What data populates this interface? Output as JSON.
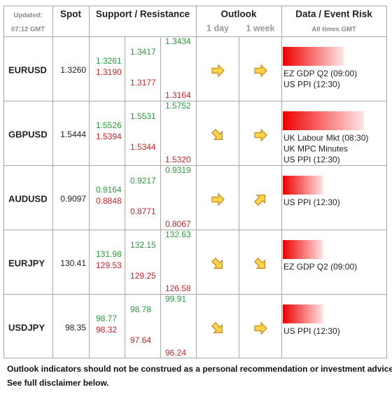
{
  "header": {
    "updated_label": "Updated:",
    "updated_time": "07:12 GMT",
    "spot": "Spot",
    "support_resistance": "Support / Resistance",
    "outlook": "Outlook",
    "outlook_1day": "1 day",
    "outlook_1week": "1 week",
    "event_risk": "Data / Event Risk",
    "times_note": "All times GMT"
  },
  "rows": [
    {
      "pair": "EURUSD",
      "spot": "1.3260",
      "levels": [
        {
          "resistance": "1.3261",
          "support": "1.3190"
        },
        {
          "resistance": "1.3417",
          "support": "1.3177"
        },
        {
          "resistance": "1.3434",
          "support": "1.3164"
        }
      ],
      "outlook_1day": "right",
      "outlook_1week": "right",
      "risk": 3,
      "events": [
        "EZ GDP Q2 (09:00)",
        "US PPI (12:30)"
      ]
    },
    {
      "pair": "GBPUSD",
      "spot": "1.5444",
      "levels": [
        {
          "resistance": "1.5526",
          "support": "1.5394"
        },
        {
          "resistance": "1.5531",
          "support": "1.5344"
        },
        {
          "resistance": "1.5752",
          "support": "1.5320"
        }
      ],
      "outlook_1day": "down-right",
      "outlook_1week": "right",
      "risk": 4,
      "events": [
        "UK Labour Mkt (08:30)",
        "UK MPC Minutes",
        "US PPI (12:30)"
      ]
    },
    {
      "pair": "AUDUSD",
      "spot": "0.9097",
      "levels": [
        {
          "resistance": "0.9164",
          "support": "0.8848"
        },
        {
          "resistance": "0.9217",
          "support": "0.8771"
        },
        {
          "resistance": "0.9319",
          "support": "0.8067"
        }
      ],
      "outlook_1day": "right",
      "outlook_1week": "up-right",
      "risk": 2,
      "events": [
        "US PPI (12:30)"
      ]
    },
    {
      "pair": "EURJPY",
      "spot": "130.41",
      "levels": [
        {
          "resistance": "131.98",
          "support": "129.53"
        },
        {
          "resistance": "132.15",
          "support": "129.25"
        },
        {
          "resistance": "132.63",
          "support": "126.58"
        }
      ],
      "outlook_1day": "down-right",
      "outlook_1week": "down-right",
      "risk": 2,
      "events": [
        "EZ GDP Q2 (09:00)"
      ]
    },
    {
      "pair": "USDJPY",
      "spot": "98.35",
      "levels": [
        {
          "resistance": "98.77",
          "support": "98.32"
        },
        {
          "resistance": "98.78",
          "support": "97.64"
        },
        {
          "resistance": "99.91",
          "support": "96.24"
        }
      ],
      "outlook_1day": "down-right",
      "outlook_1week": "right",
      "risk": 2,
      "events": [
        "US PPI (12:30)"
      ]
    }
  ],
  "footer": [
    "Outlook indicators should not be construed as a personal recommendation or investment advice.",
    "See full disclaimer below."
  ]
}
